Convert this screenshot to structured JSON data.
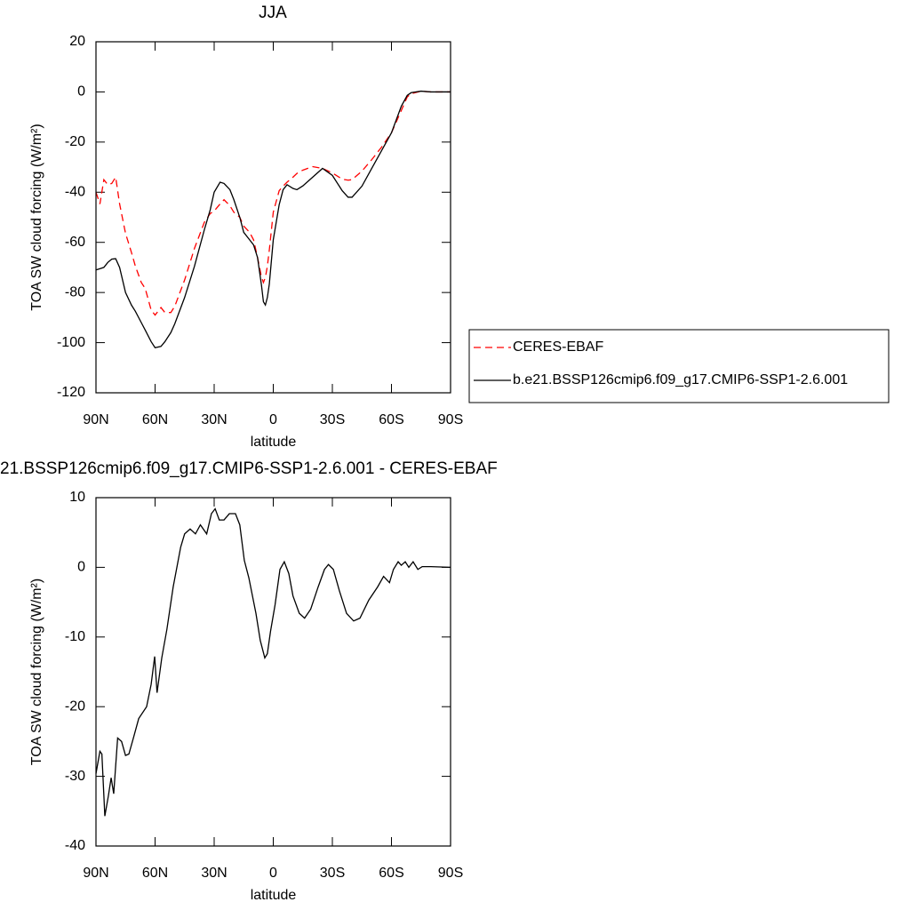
{
  "chart_data": [
    {
      "type": "line",
      "title": "JJA",
      "xlabel": "latitude",
      "ylabel": "TOA SW cloud forcing (W/m²)",
      "xlim": [
        90,
        -90
      ],
      "ylim": [
        -120,
        20
      ],
      "xticks": [
        {
          "value": 90,
          "label": "90N"
        },
        {
          "value": 60,
          "label": "60N"
        },
        {
          "value": 30,
          "label": "30N"
        },
        0,
        {
          "value": -30,
          "label": "30S"
        },
        {
          "value": -60,
          "label": "60S"
        },
        {
          "value": -90,
          "label": "90S"
        }
      ],
      "yticks": [
        -120,
        -100,
        -80,
        -60,
        -40,
        -20,
        0,
        20
      ],
      "legend": "right",
      "x": [
        90,
        88,
        86,
        84,
        82,
        80,
        78,
        75,
        72,
        70,
        67,
        65,
        62,
        60,
        57,
        55,
        52,
        50,
        45,
        40,
        35,
        32,
        30,
        27,
        25,
        22,
        20,
        17,
        15,
        12,
        10,
        8,
        6,
        5,
        4,
        3,
        2,
        0,
        -3,
        -5,
        -7,
        -10,
        -12,
        -15,
        -20,
        -25,
        -30,
        -35,
        -38,
        -40,
        -45,
        -50,
        -55,
        -60,
        -65,
        -68,
        -70,
        -75,
        -80,
        -85,
        -90
      ],
      "series": [
        {
          "name": "CERES-EBAF",
          "color": "#ff0000",
          "dashed": true,
          "values": [
            -40,
            -44.7,
            -35,
            -37,
            -36.5,
            -34,
            -44.7,
            -56.4,
            -64,
            -69.5,
            -76,
            -78.4,
            -87,
            -89,
            -86,
            -88,
            -88,
            -85.5,
            -75,
            -62.4,
            -52,
            -48.5,
            -47.5,
            -44.7,
            -43,
            -45.4,
            -48,
            -50,
            -53.5,
            -56,
            -59,
            -66,
            -73.8,
            -76,
            -74,
            -69.5,
            -63,
            -48,
            -39.4,
            -37.6,
            -36,
            -34,
            -32.5,
            -31.2,
            -29.8,
            -30.5,
            -32.3,
            -34.8,
            -35.2,
            -35,
            -31.6,
            -27,
            -22,
            -16.3,
            -7.4,
            -2,
            -0.7,
            0.3,
            0,
            0,
            0
          ]
        },
        {
          "name": "b.e21.BSSP126cmip6.f09_g17.CMIP6-SSP1-2.6.001",
          "color": "#000000",
          "dashed": false,
          "values": [
            -71,
            -70.5,
            -70,
            -68,
            -66.7,
            -66.5,
            -70,
            -80,
            -85,
            -87.5,
            -92,
            -95,
            -99.6,
            -102,
            -101.5,
            -99.6,
            -96,
            -92.5,
            -82,
            -69.5,
            -55,
            -47,
            -40,
            -36,
            -36.5,
            -39,
            -43,
            -50,
            -56,
            -59,
            -61,
            -66,
            -77,
            -83.7,
            -85,
            -82,
            -76.6,
            -59,
            -45,
            -39,
            -37,
            -38.5,
            -39,
            -37.5,
            -34,
            -30.5,
            -33.3,
            -39.4,
            -42,
            -42,
            -37.6,
            -30.5,
            -23.4,
            -16.3,
            -5.7,
            -1.4,
            -0.3,
            0.3,
            0,
            0,
            0
          ]
        }
      ]
    },
    {
      "type": "line",
      "title": "21.BSSP126cmip6.f09_g17.CMIP6-SSP1-2.6.001 - CERES-EBAF",
      "xlabel": "latitude",
      "ylabel": "TOA SW cloud forcing (W/m²)",
      "xlim": [
        90,
        -90
      ],
      "ylim": [
        -40,
        10
      ],
      "xticks": [
        {
          "value": 90,
          "label": "90N"
        },
        {
          "value": 60,
          "label": "60N"
        },
        {
          "value": 30,
          "label": "30N"
        },
        0,
        {
          "value": -30,
          "label": "30S"
        },
        {
          "value": -60,
          "label": "60S"
        },
        {
          "value": -90,
          "label": "90S"
        }
      ],
      "yticks": [
        -40,
        -30,
        -20,
        -10,
        0,
        10
      ],
      "x": [
        90,
        88,
        87,
        85.5,
        83.7,
        82.3,
        81,
        79,
        77,
        75,
        73.3,
        71,
        68.3,
        64.3,
        62,
        60.2,
        59,
        56.6,
        54,
        50.8,
        47,
        45,
        42.2,
        39.5,
        37,
        33.8,
        31.4,
        29.5,
        27.4,
        25,
        22.3,
        19.2,
        17,
        14.7,
        12.4,
        8.8,
        6.6,
        4.3,
        3,
        1.4,
        -0.9,
        -3.4,
        -5.6,
        -7.9,
        -10,
        -13.2,
        -15.9,
        -19,
        -22.8,
        -26,
        -28,
        -30.5,
        -33.6,
        -37.2,
        -40.8,
        -44,
        -48.5,
        -53,
        -56,
        -59,
        -61,
        -63.4,
        -65,
        -67,
        -68.8,
        -71,
        -73.4,
        -75.6,
        -80,
        -90
      ],
      "series": [
        {
          "color": "#000000",
          "values": [
            -29.6,
            -26.4,
            -26.8,
            -35.7,
            -32.8,
            -30.2,
            -32.5,
            -24.5,
            -25,
            -27,
            -26.8,
            -24.5,
            -21.7,
            -20,
            -16.8,
            -12.8,
            -18,
            -13,
            -8.9,
            -2.8,
            2.9,
            4.8,
            5.5,
            4.8,
            6.1,
            4.8,
            7.7,
            8.4,
            6.8,
            6.8,
            7.7,
            7.7,
            6.1,
            1,
            -1.5,
            -6.6,
            -10.5,
            -13,
            -12.4,
            -9.2,
            -5.4,
            -0.3,
            0.8,
            -0.9,
            -4.1,
            -6.6,
            -7.3,
            -6,
            -2.8,
            -0.3,
            0.4,
            -0.3,
            -3.4,
            -6.6,
            -7.7,
            -7.3,
            -4.7,
            -2.8,
            -1.3,
            -2.2,
            -0.3,
            0.8,
            0.3,
            0.8,
            0,
            0.8,
            -0.3,
            0.1,
            0.1,
            0
          ]
        }
      ]
    }
  ]
}
